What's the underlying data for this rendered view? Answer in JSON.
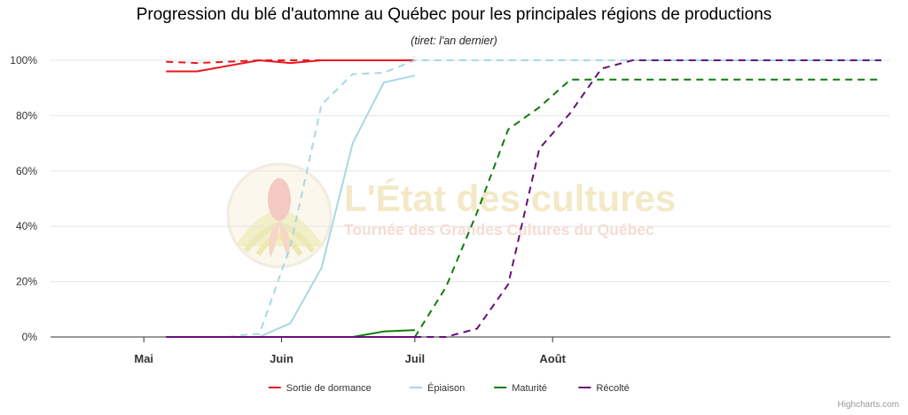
{
  "title": "Progression du blé d'automne au Québec pour les principales régions de productions",
  "subtitle": "(tiret: l'an dernier)",
  "credit": "Highcharts.com",
  "watermark": {
    "title": "L'État des cultures",
    "subtitle": "Tournée des Grandes Cultures du Québec",
    "logo_icon": "corn-field-logo",
    "title_color": "#f3e9c6",
    "subtitle_color": "#f6dcd2"
  },
  "chart_data": {
    "type": "line",
    "title": "Progression du blé d'automne au Québec pour les principales régions de productions",
    "subtitle": "(tiret: l'an dernier)",
    "xlabel": "",
    "ylabel": "",
    "x_unit": "day-of-year",
    "xlim": [
      100,
      289
    ],
    "ylim": [
      0,
      100
    ],
    "x_ticks": [
      {
        "label": "Mai",
        "value": 121
      },
      {
        "label": "Juin",
        "value": 152
      },
      {
        "label": "Juil",
        "value": 182
      },
      {
        "label": "Août",
        "value": 213
      }
    ],
    "y_ticks": [
      0,
      20,
      40,
      60,
      80,
      100
    ],
    "y_tick_labels": [
      "0%",
      "20%",
      "40%",
      "60%",
      "80%",
      "100%"
    ],
    "grid": true,
    "legend_position": "bottom-center",
    "series": [
      {
        "name": "Sortie de dormance",
        "color": "#e8171f",
        "dash": "solid",
        "points": [
          [
            126,
            96
          ],
          [
            133,
            96
          ],
          [
            140,
            98
          ],
          [
            147,
            100
          ],
          [
            154,
            99
          ],
          [
            161,
            100
          ],
          [
            168,
            100
          ],
          [
            175,
            100
          ],
          [
            182,
            100
          ]
        ]
      },
      {
        "name": "Sortie de dormance",
        "color": "#e8171f",
        "dash": "dash",
        "show_in_legend": false,
        "points": [
          [
            126,
            99.5
          ],
          [
            133,
            99
          ],
          [
            140,
            99.5
          ],
          [
            147,
            100
          ],
          [
            154,
            100
          ],
          [
            161,
            100
          ],
          [
            168,
            100
          ],
          [
            175,
            100
          ],
          [
            182,
            100
          ]
        ]
      },
      {
        "name": "Épiaison",
        "color": "#a8d8e4",
        "dash": "solid",
        "points": [
          [
            126,
            0
          ],
          [
            133,
            0
          ],
          [
            140,
            0
          ],
          [
            147,
            0
          ],
          [
            154,
            5
          ],
          [
            161,
            25
          ],
          [
            168,
            70
          ],
          [
            175,
            92
          ],
          [
            182,
            94.5
          ]
        ]
      },
      {
        "name": "Épiaison",
        "color": "#a8d8e4",
        "dash": "dash",
        "show_in_legend": false,
        "points": [
          [
            126,
            0
          ],
          [
            133,
            0
          ],
          [
            140,
            0
          ],
          [
            145,
            1
          ],
          [
            147,
            1
          ],
          [
            154,
            33
          ],
          [
            161,
            84
          ],
          [
            168,
            95
          ],
          [
            175,
            95.5
          ],
          [
            182,
            100
          ],
          [
            189,
            100
          ],
          [
            196,
            100
          ],
          [
            203,
            100
          ],
          [
            210,
            100
          ],
          [
            217,
            100
          ],
          [
            224,
            100
          ],
          [
            231,
            100
          ],
          [
            238,
            100
          ],
          [
            245,
            100
          ],
          [
            252,
            100
          ],
          [
            259,
            100
          ],
          [
            266,
            100
          ],
          [
            273,
            100
          ],
          [
            280,
            100
          ],
          [
            287,
            100
          ]
        ]
      },
      {
        "name": "Maturité",
        "color": "#0d7d0d",
        "dash": "solid",
        "points": [
          [
            126,
            0
          ],
          [
            133,
            0
          ],
          [
            140,
            0
          ],
          [
            147,
            0
          ],
          [
            154,
            0
          ],
          [
            161,
            0
          ],
          [
            168,
            0
          ],
          [
            175,
            2
          ],
          [
            182,
            2.5
          ]
        ]
      },
      {
        "name": "Maturité",
        "color": "#0d7d0d",
        "dash": "dash",
        "show_in_legend": false,
        "points": [
          [
            126,
            0
          ],
          [
            133,
            0
          ],
          [
            140,
            0
          ],
          [
            147,
            0
          ],
          [
            154,
            0
          ],
          [
            161,
            0
          ],
          [
            168,
            0
          ],
          [
            175,
            0
          ],
          [
            182,
            0
          ],
          [
            189,
            18
          ],
          [
            196,
            45
          ],
          [
            203,
            75
          ],
          [
            210,
            83
          ],
          [
            217,
            93
          ],
          [
            224,
            93
          ],
          [
            231,
            93
          ],
          [
            238,
            93
          ],
          [
            245,
            93
          ],
          [
            252,
            93
          ],
          [
            259,
            93
          ],
          [
            266,
            93
          ],
          [
            273,
            93
          ],
          [
            280,
            93
          ],
          [
            287,
            93
          ]
        ]
      },
      {
        "name": "Récolté",
        "color": "#6a0f7a",
        "dash": "solid",
        "points": [
          [
            126,
            0
          ],
          [
            133,
            0
          ],
          [
            140,
            0
          ],
          [
            147,
            0
          ],
          [
            154,
            0
          ],
          [
            161,
            0
          ],
          [
            168,
            0
          ],
          [
            175,
            0
          ],
          [
            182,
            0
          ]
        ]
      },
      {
        "name": "Récolté",
        "color": "#6a0f7a",
        "dash": "dash",
        "show_in_legend": false,
        "points": [
          [
            126,
            0
          ],
          [
            133,
            0
          ],
          [
            140,
            0
          ],
          [
            147,
            0
          ],
          [
            154,
            0
          ],
          [
            161,
            0
          ],
          [
            168,
            0
          ],
          [
            175,
            0
          ],
          [
            182,
            0
          ],
          [
            189,
            0
          ],
          [
            196,
            3
          ],
          [
            203,
            19
          ],
          [
            210,
            68
          ],
          [
            217,
            81
          ],
          [
            224,
            97
          ],
          [
            231,
            100
          ],
          [
            238,
            100
          ],
          [
            245,
            100
          ],
          [
            252,
            100
          ],
          [
            259,
            100
          ],
          [
            266,
            100
          ],
          [
            273,
            100
          ],
          [
            280,
            100
          ],
          [
            287,
            100
          ]
        ]
      }
    ],
    "legend": [
      {
        "name": "Sortie de dormance",
        "color": "#e8171f"
      },
      {
        "name": "Épiaison",
        "color": "#a8d8e4"
      },
      {
        "name": "Maturité",
        "color": "#0d7d0d"
      },
      {
        "name": "Récolté",
        "color": "#6a0f7a"
      }
    ]
  }
}
